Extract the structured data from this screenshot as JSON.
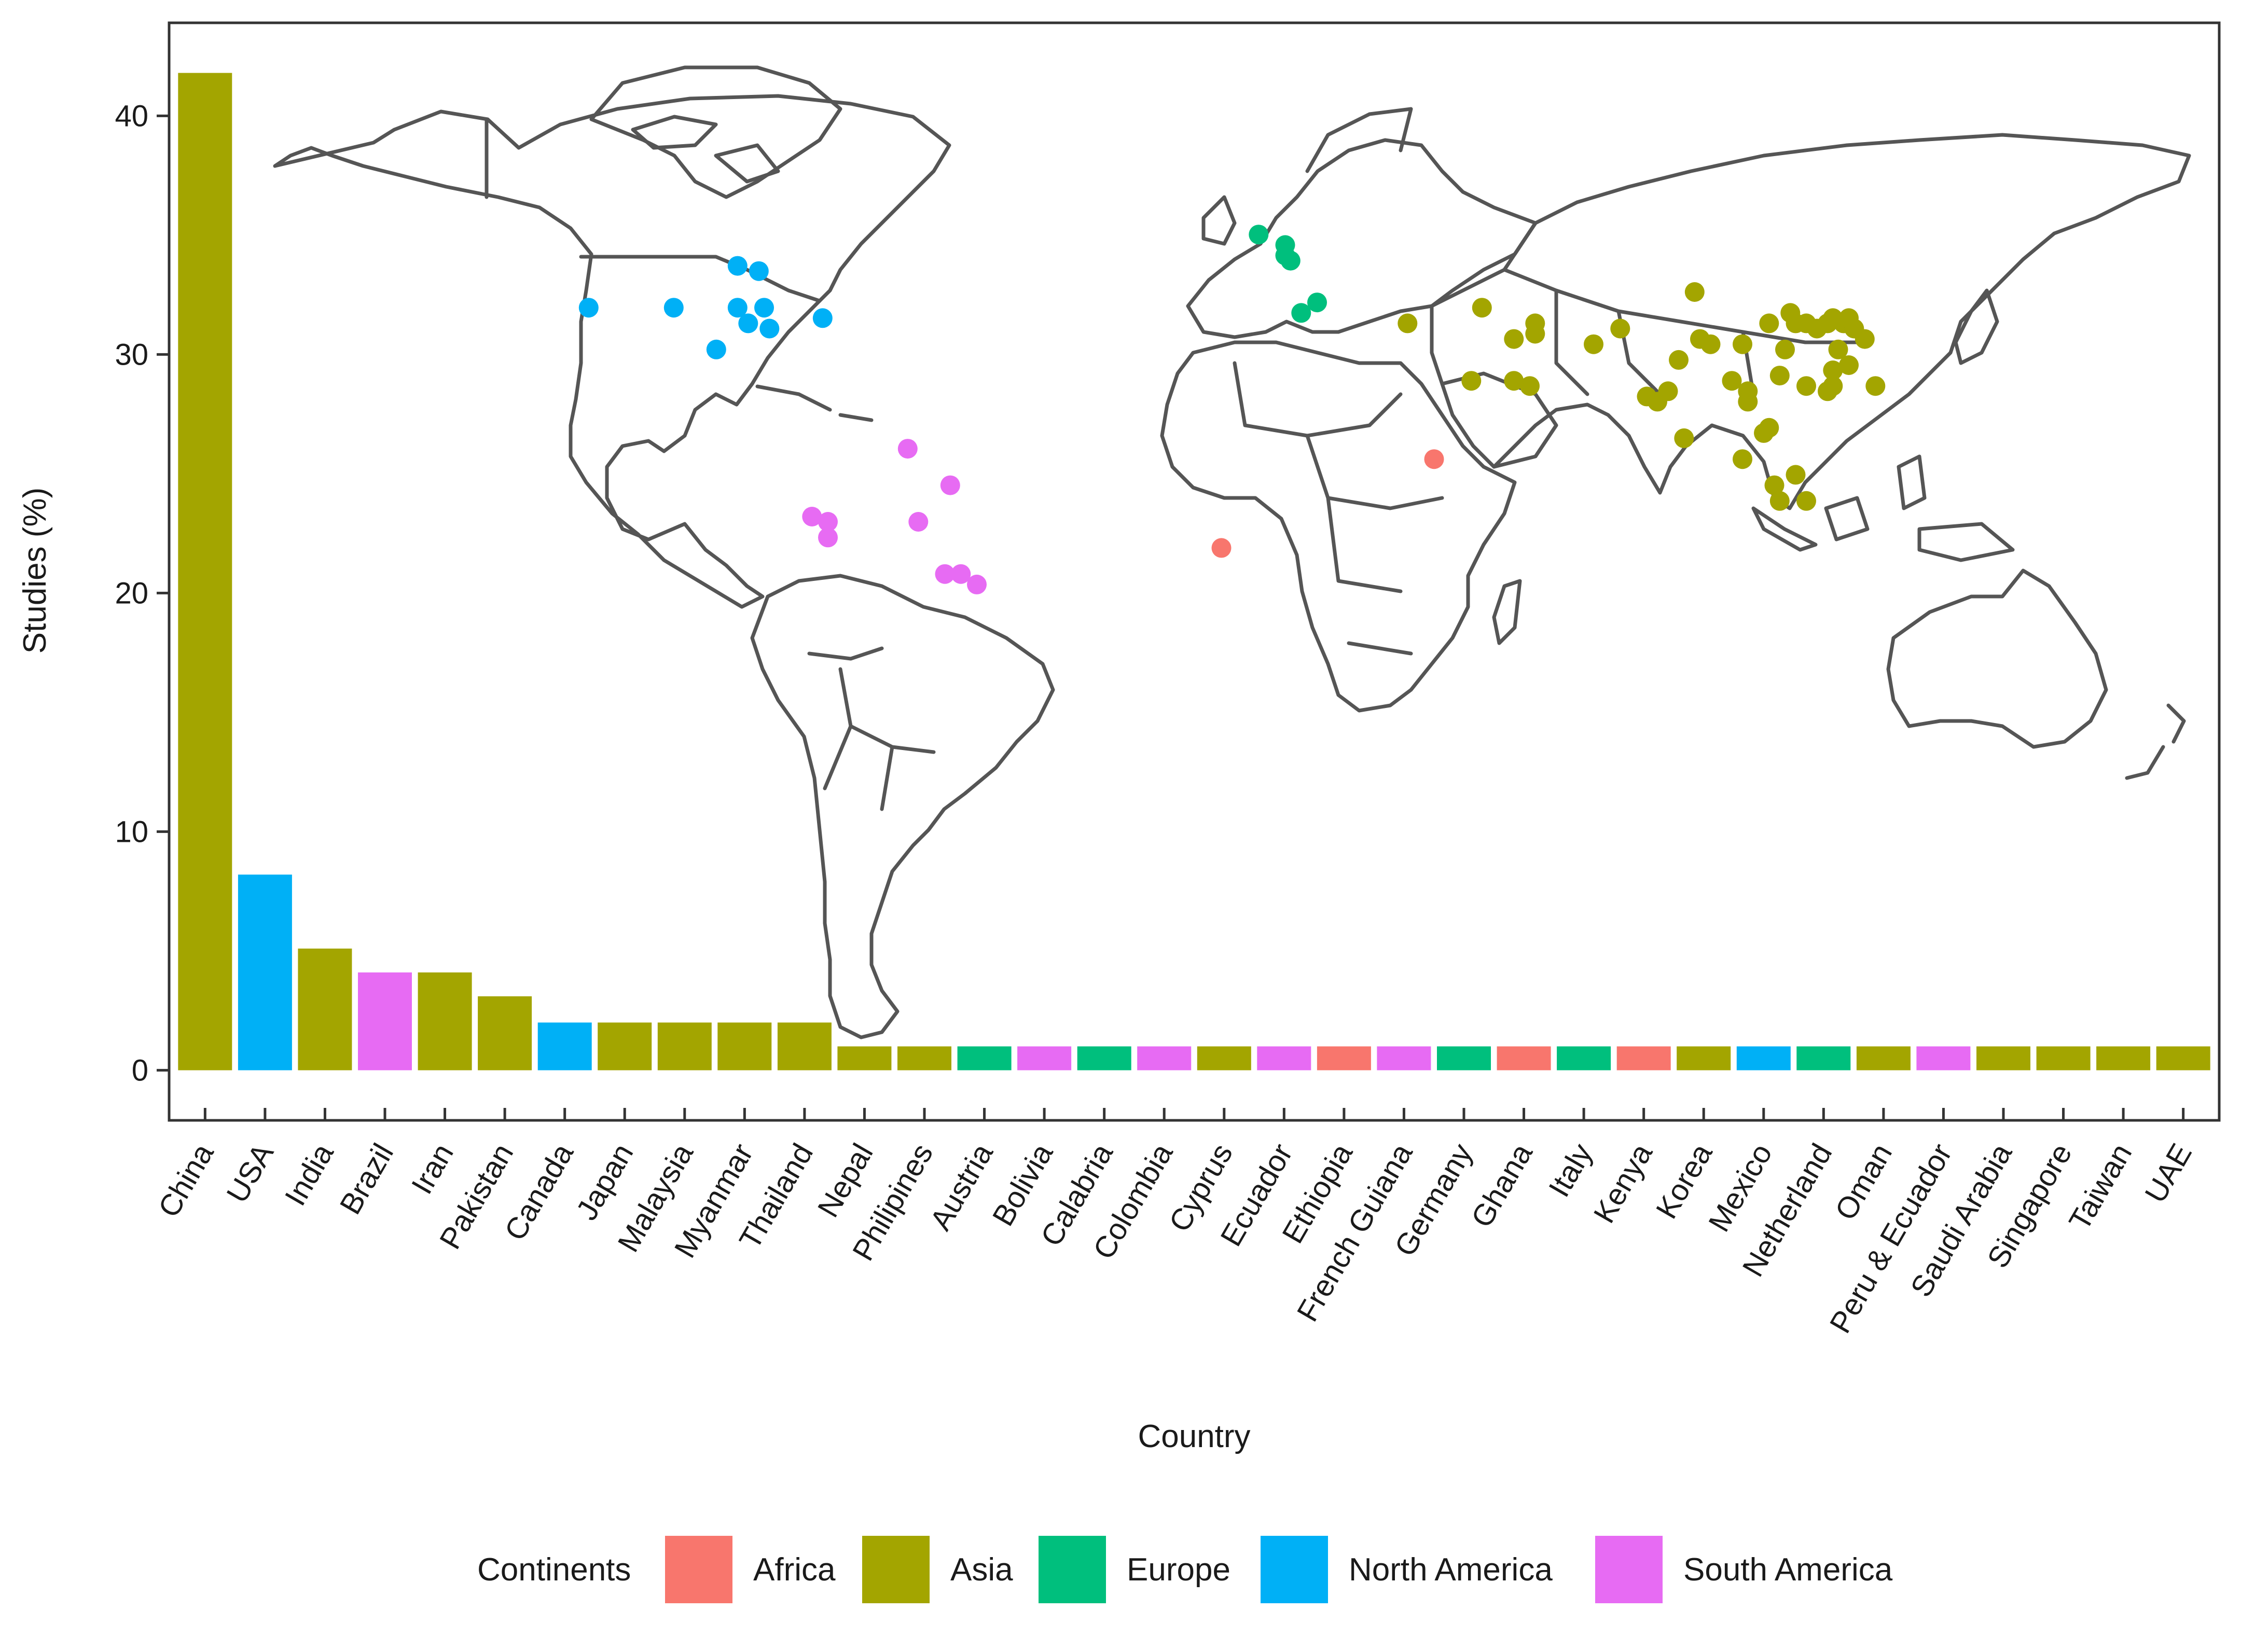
{
  "chart_data": {
    "type": "bar",
    "xlabel": "Country",
    "ylabel": "Studies (%)",
    "ylim": [
      -2.1,
      43.9
    ],
    "yticks": [
      0,
      10,
      20,
      30,
      40
    ],
    "grid": false,
    "legend_position": "bottom",
    "legend_title": "Continents",
    "continents": [
      {
        "name": "Africa",
        "color": "#F8766D"
      },
      {
        "name": "Asia",
        "color": "#A3A500"
      },
      {
        "name": "Europe",
        "color": "#00BF7D"
      },
      {
        "name": "North America",
        "color": "#00B0F6"
      },
      {
        "name": "South America",
        "color": "#E76BF3"
      }
    ],
    "bars": [
      {
        "country": "China",
        "value": 41.8,
        "continent": "Asia"
      },
      {
        "country": "USA",
        "value": 8.2,
        "continent": "North America"
      },
      {
        "country": "India",
        "value": 5.1,
        "continent": "Asia"
      },
      {
        "country": "Brazil",
        "value": 4.1,
        "continent": "South America"
      },
      {
        "country": "Iran",
        "value": 4.1,
        "continent": "Asia"
      },
      {
        "country": "Pakistan",
        "value": 3.1,
        "continent": "Asia"
      },
      {
        "country": "Canada",
        "value": 2.0,
        "continent": "North America"
      },
      {
        "country": "Japan",
        "value": 2.0,
        "continent": "Asia"
      },
      {
        "country": "Malaysia",
        "value": 2.0,
        "continent": "Asia"
      },
      {
        "country": "Myanmar",
        "value": 2.0,
        "continent": "Asia"
      },
      {
        "country": "Thailand",
        "value": 2.0,
        "continent": "Asia"
      },
      {
        "country": "Nepal",
        "value": 1.0,
        "continent": "Asia"
      },
      {
        "country": "Philipines",
        "value": 1.0,
        "continent": "Asia"
      },
      {
        "country": "Austria",
        "value": 1.0,
        "continent": "Europe"
      },
      {
        "country": "Bolivia",
        "value": 1.0,
        "continent": "South America"
      },
      {
        "country": "Calabria",
        "value": 1.0,
        "continent": "Europe"
      },
      {
        "country": "Colombia",
        "value": 1.0,
        "continent": "South America"
      },
      {
        "country": "Cyprus",
        "value": 1.0,
        "continent": "Asia"
      },
      {
        "country": "Ecuador",
        "value": 1.0,
        "continent": "South America"
      },
      {
        "country": "Ethiopia",
        "value": 1.0,
        "continent": "Africa"
      },
      {
        "country": "French Guiana",
        "value": 1.0,
        "continent": "South America"
      },
      {
        "country": "Germany",
        "value": 1.0,
        "continent": "Europe"
      },
      {
        "country": "Ghana",
        "value": 1.0,
        "continent": "Africa"
      },
      {
        "country": "Italy",
        "value": 1.0,
        "continent": "Europe"
      },
      {
        "country": "Kenya",
        "value": 1.0,
        "continent": "Africa"
      },
      {
        "country": "Korea",
        "value": 1.0,
        "continent": "Asia"
      },
      {
        "country": "Mexico",
        "value": 1.0,
        "continent": "North America"
      },
      {
        "country": "Netherland",
        "value": 1.0,
        "continent": "Europe"
      },
      {
        "country": "Oman",
        "value": 1.0,
        "continent": "Asia"
      },
      {
        "country": "Peru & Ecuador",
        "value": 1.0,
        "continent": "South America"
      },
      {
        "country": "Saudi Arabia",
        "value": 1.0,
        "continent": "Asia"
      },
      {
        "country": "Singapore",
        "value": 1.0,
        "continent": "Asia"
      },
      {
        "country": "Taiwan",
        "value": 1.0,
        "continent": "Asia"
      },
      {
        "country": "UAE",
        "value": 1.0,
        "continent": "Asia"
      }
    ],
    "inset_map": {
      "type": "scatter",
      "description_units": "longitude, latitude (degrees)",
      "xlim": [
        -180,
        180
      ],
      "ylim": [
        -60,
        84
      ],
      "points": [
        {
          "lon": -121,
          "lat": 38,
          "continent": "North America"
        },
        {
          "lon": -105,
          "lat": 38,
          "continent": "North America"
        },
        {
          "lon": -93,
          "lat": 46,
          "continent": "North America"
        },
        {
          "lon": -89,
          "lat": 45,
          "continent": "North America"
        },
        {
          "lon": -93,
          "lat": 38,
          "continent": "North America"
        },
        {
          "lon": -88,
          "lat": 38,
          "continent": "North America"
        },
        {
          "lon": -91,
          "lat": 35,
          "continent": "North America"
        },
        {
          "lon": -87,
          "lat": 34,
          "continent": "North America"
        },
        {
          "lon": -97,
          "lat": 30,
          "continent": "North America"
        },
        {
          "lon": -77,
          "lat": 36,
          "continent": "North America"
        },
        {
          "lon": -61,
          "lat": 11,
          "continent": "South America"
        },
        {
          "lon": -53,
          "lat": 4,
          "continent": "South America"
        },
        {
          "lon": -79,
          "lat": -2,
          "continent": "South America"
        },
        {
          "lon": -76,
          "lat": -3,
          "continent": "South America"
        },
        {
          "lon": -76,
          "lat": -6,
          "continent": "South America"
        },
        {
          "lon": -59,
          "lat": -3,
          "continent": "South America"
        },
        {
          "lon": -54,
          "lat": -13,
          "continent": "South America"
        },
        {
          "lon": -51,
          "lat": -13,
          "continent": "South America"
        },
        {
          "lon": -48,
          "lat": -15,
          "continent": "South America"
        },
        {
          "lon": 5,
          "lat": 52,
          "continent": "Europe"
        },
        {
          "lon": 10,
          "lat": 50,
          "continent": "Europe"
        },
        {
          "lon": 10,
          "lat": 48,
          "continent": "Europe"
        },
        {
          "lon": 11,
          "lat": 47,
          "continent": "Europe"
        },
        {
          "lon": 16,
          "lat": 39,
          "continent": "Europe"
        },
        {
          "lon": 13,
          "lat": 37,
          "continent": "Europe"
        },
        {
          "lon": 33,
          "lat": 35,
          "continent": "Asia"
        },
        {
          "lon": 38,
          "lat": 9,
          "continent": "Africa"
        },
        {
          "lon": -2,
          "lat": -8,
          "continent": "Africa"
        },
        {
          "lon": 47,
          "lat": 38,
          "continent": "Asia"
        },
        {
          "lon": 53,
          "lat": 32,
          "continent": "Asia"
        },
        {
          "lon": 57,
          "lat": 35,
          "continent": "Asia"
        },
        {
          "lon": 57,
          "lat": 33,
          "continent": "Asia"
        },
        {
          "lon": 45,
          "lat": 24,
          "continent": "Asia"
        },
        {
          "lon": 53,
          "lat": 24,
          "continent": "Asia"
        },
        {
          "lon": 56,
          "lat": 23,
          "continent": "Asia"
        },
        {
          "lon": 68,
          "lat": 31,
          "continent": "Asia"
        },
        {
          "lon": 73,
          "lat": 34,
          "continent": "Asia"
        },
        {
          "lon": 84,
          "lat": 28,
          "continent": "Asia"
        },
        {
          "lon": 78,
          "lat": 21,
          "continent": "Asia"
        },
        {
          "lon": 80,
          "lat": 20,
          "continent": "Asia"
        },
        {
          "lon": 82,
          "lat": 22,
          "continent": "Asia"
        },
        {
          "lon": 87,
          "lat": 41,
          "continent": "Asia"
        },
        {
          "lon": 88,
          "lat": 32,
          "continent": "Asia"
        },
        {
          "lon": 90,
          "lat": 31,
          "continent": "Asia"
        },
        {
          "lon": 96,
          "lat": 31,
          "continent": "Asia"
        },
        {
          "lon": 94,
          "lat": 24,
          "continent": "Asia"
        },
        {
          "lon": 97,
          "lat": 22,
          "continent": "Asia"
        },
        {
          "lon": 97,
          "lat": 20,
          "continent": "Asia"
        },
        {
          "lon": 101,
          "lat": 15,
          "continent": "Asia"
        },
        {
          "lon": 96,
          "lat": 9,
          "continent": "Asia"
        },
        {
          "lon": 85,
          "lat": 13,
          "continent": "Asia"
        },
        {
          "lon": 102,
          "lat": 4,
          "continent": "Asia"
        },
        {
          "lon": 103,
          "lat": 1,
          "continent": "Asia"
        },
        {
          "lon": 100,
          "lat": 14,
          "continent": "Asia"
        },
        {
          "lon": 101,
          "lat": 35,
          "continent": "Asia"
        },
        {
          "lon": 104,
          "lat": 30,
          "continent": "Asia"
        },
        {
          "lon": 105,
          "lat": 37,
          "continent": "Asia"
        },
        {
          "lon": 106,
          "lat": 35,
          "continent": "Asia"
        },
        {
          "lon": 108,
          "lat": 35,
          "continent": "Asia"
        },
        {
          "lon": 110,
          "lat": 34,
          "continent": "Asia"
        },
        {
          "lon": 112,
          "lat": 35,
          "continent": "Asia"
        },
        {
          "lon": 113,
          "lat": 36,
          "continent": "Asia"
        },
        {
          "lon": 115,
          "lat": 35,
          "continent": "Asia"
        },
        {
          "lon": 117,
          "lat": 34,
          "continent": "Asia"
        },
        {
          "lon": 119,
          "lat": 32,
          "continent": "Asia"
        },
        {
          "lon": 116,
          "lat": 36,
          "continent": "Asia"
        },
        {
          "lon": 114,
          "lat": 30,
          "continent": "Asia"
        },
        {
          "lon": 113,
          "lat": 26,
          "continent": "Asia"
        },
        {
          "lon": 116,
          "lat": 27,
          "continent": "Asia"
        },
        {
          "lon": 113,
          "lat": 23,
          "continent": "Asia"
        },
        {
          "lon": 108,
          "lat": 23,
          "continent": "Asia"
        },
        {
          "lon": 103,
          "lat": 25,
          "continent": "Asia"
        },
        {
          "lon": 112,
          "lat": 22,
          "continent": "Asia"
        },
        {
          "lon": 121,
          "lat": 23,
          "continent": "Asia"
        },
        {
          "lon": 106,
          "lat": 6,
          "continent": "Asia"
        },
        {
          "lon": 108,
          "lat": 1,
          "continent": "Asia"
        }
      ]
    }
  }
}
